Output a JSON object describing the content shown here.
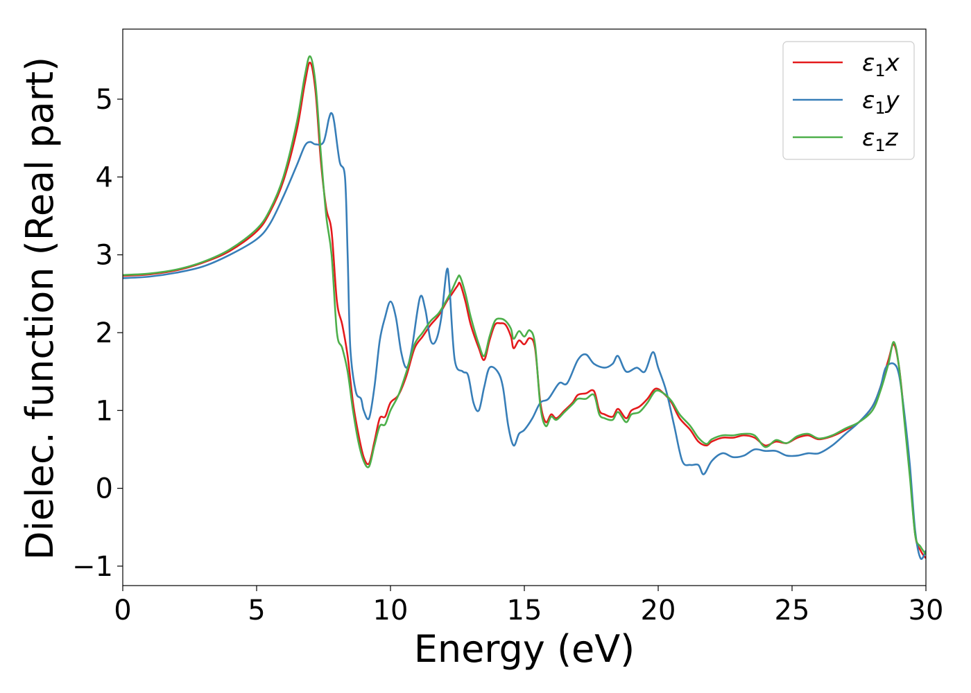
{
  "chart_data": {
    "type": "line",
    "xlabel": "Energy (eV)",
    "ylabel": "Dielec. function (Real part)",
    "xlim": [
      0,
      30
    ],
    "ylim": [
      -1.25,
      5.9
    ],
    "xticks": [
      0,
      5,
      10,
      15,
      20,
      25,
      30
    ],
    "yticks": [
      -1,
      0,
      1,
      2,
      3,
      4,
      5
    ],
    "xtick_labels": [
      "0",
      "5",
      "10",
      "15",
      "20",
      "25",
      "30"
    ],
    "ytick_labels": [
      "−1",
      "0",
      "1",
      "2",
      "3",
      "4",
      "5"
    ],
    "grid": false,
    "legend_position": "top-right",
    "series": [
      {
        "name": "ε₁x",
        "symbol": "ε",
        "subscript": "1",
        "component": "x",
        "color": "#e41a1c",
        "points": [
          [
            0,
            2.73
          ],
          [
            1,
            2.75
          ],
          [
            2,
            2.8
          ],
          [
            3,
            2.9
          ],
          [
            4,
            3.05
          ],
          [
            5,
            3.3
          ],
          [
            5.5,
            3.55
          ],
          [
            6,
            3.95
          ],
          [
            6.5,
            4.6
          ],
          [
            6.8,
            5.2
          ],
          [
            7,
            5.47
          ],
          [
            7.2,
            5.1
          ],
          [
            7.4,
            4.2
          ],
          [
            7.6,
            3.6
          ],
          [
            7.8,
            3.3
          ],
          [
            8,
            2.4
          ],
          [
            8.2,
            2.1
          ],
          [
            8.4,
            1.7
          ],
          [
            8.6,
            1.1
          ],
          [
            8.8,
            0.7
          ],
          [
            9,
            0.4
          ],
          [
            9.2,
            0.32
          ],
          [
            9.4,
            0.6
          ],
          [
            9.6,
            0.9
          ],
          [
            9.8,
            0.92
          ],
          [
            10,
            1.1
          ],
          [
            10.3,
            1.2
          ],
          [
            10.6,
            1.45
          ],
          [
            10.9,
            1.8
          ],
          [
            11.2,
            1.95
          ],
          [
            11.5,
            2.1
          ],
          [
            11.8,
            2.22
          ],
          [
            12.1,
            2.4
          ],
          [
            12.3,
            2.5
          ],
          [
            12.5,
            2.6
          ],
          [
            12.6,
            2.63
          ],
          [
            12.8,
            2.4
          ],
          [
            13,
            2.1
          ],
          [
            13.3,
            1.8
          ],
          [
            13.5,
            1.65
          ],
          [
            13.7,
            1.9
          ],
          [
            13.9,
            2.1
          ],
          [
            14.1,
            2.12
          ],
          [
            14.3,
            2.1
          ],
          [
            14.5,
            1.95
          ],
          [
            14.6,
            1.8
          ],
          [
            14.8,
            1.9
          ],
          [
            15,
            1.85
          ],
          [
            15.2,
            1.93
          ],
          [
            15.4,
            1.8
          ],
          [
            15.6,
            1.1
          ],
          [
            15.8,
            0.85
          ],
          [
            16,
            0.95
          ],
          [
            16.2,
            0.9
          ],
          [
            16.5,
            1.0
          ],
          [
            16.8,
            1.1
          ],
          [
            17,
            1.2
          ],
          [
            17.3,
            1.22
          ],
          [
            17.6,
            1.25
          ],
          [
            17.8,
            1.0
          ],
          [
            18,
            0.95
          ],
          [
            18.3,
            0.92
          ],
          [
            18.5,
            1.02
          ],
          [
            18.8,
            0.9
          ],
          [
            19,
            1.0
          ],
          [
            19.3,
            1.05
          ],
          [
            19.6,
            1.15
          ],
          [
            19.9,
            1.28
          ],
          [
            20.2,
            1.22
          ],
          [
            20.5,
            1.1
          ],
          [
            20.8,
            0.9
          ],
          [
            21.2,
            0.75
          ],
          [
            21.5,
            0.6
          ],
          [
            21.8,
            0.55
          ],
          [
            22,
            0.6
          ],
          [
            22.4,
            0.65
          ],
          [
            22.8,
            0.65
          ],
          [
            23.2,
            0.68
          ],
          [
            23.6,
            0.65
          ],
          [
            24,
            0.55
          ],
          [
            24.4,
            0.6
          ],
          [
            24.8,
            0.58
          ],
          [
            25.2,
            0.65
          ],
          [
            25.6,
            0.68
          ],
          [
            26,
            0.63
          ],
          [
            26.5,
            0.67
          ],
          [
            27,
            0.75
          ],
          [
            27.5,
            0.85
          ],
          [
            28,
            1.05
          ],
          [
            28.3,
            1.3
          ],
          [
            28.6,
            1.65
          ],
          [
            28.8,
            1.85
          ],
          [
            29,
            1.55
          ],
          [
            29.2,
            0.9
          ],
          [
            29.4,
            0.2
          ],
          [
            29.6,
            -0.6
          ],
          [
            29.8,
            -0.8
          ],
          [
            30,
            -0.9
          ]
        ]
      },
      {
        "name": "ε₁y",
        "symbol": "ε",
        "subscript": "1",
        "component": "y",
        "color": "#377eb8",
        "points": [
          [
            0,
            2.7
          ],
          [
            1,
            2.72
          ],
          [
            2,
            2.77
          ],
          [
            3,
            2.85
          ],
          [
            4,
            3.0
          ],
          [
            5,
            3.2
          ],
          [
            5.5,
            3.4
          ],
          [
            6,
            3.75
          ],
          [
            6.5,
            4.15
          ],
          [
            6.8,
            4.4
          ],
          [
            7,
            4.45
          ],
          [
            7.2,
            4.42
          ],
          [
            7.5,
            4.45
          ],
          [
            7.7,
            4.75
          ],
          [
            7.8,
            4.82
          ],
          [
            7.9,
            4.7
          ],
          [
            8.1,
            4.2
          ],
          [
            8.3,
            4.0
          ],
          [
            8.4,
            3.0
          ],
          [
            8.5,
            1.8
          ],
          [
            8.7,
            1.25
          ],
          [
            8.9,
            1.15
          ],
          [
            9,
            1.0
          ],
          [
            9.2,
            0.9
          ],
          [
            9.4,
            1.3
          ],
          [
            9.6,
            1.9
          ],
          [
            9.8,
            2.2
          ],
          [
            10,
            2.4
          ],
          [
            10.2,
            2.2
          ],
          [
            10.4,
            1.75
          ],
          [
            10.6,
            1.55
          ],
          [
            10.8,
            1.8
          ],
          [
            11.1,
            2.45
          ],
          [
            11.3,
            2.3
          ],
          [
            11.5,
            1.9
          ],
          [
            11.7,
            1.9
          ],
          [
            11.9,
            2.2
          ],
          [
            12.1,
            2.8
          ],
          [
            12.2,
            2.6
          ],
          [
            12.4,
            1.65
          ],
          [
            12.7,
            1.5
          ],
          [
            12.9,
            1.45
          ],
          [
            13.1,
            1.1
          ],
          [
            13.3,
            1.0
          ],
          [
            13.5,
            1.3
          ],
          [
            13.7,
            1.55
          ],
          [
            14,
            1.5
          ],
          [
            14.2,
            1.3
          ],
          [
            14.4,
            0.8
          ],
          [
            14.6,
            0.55
          ],
          [
            14.8,
            0.7
          ],
          [
            15,
            0.75
          ],
          [
            15.3,
            0.9
          ],
          [
            15.6,
            1.1
          ],
          [
            15.9,
            1.15
          ],
          [
            16.3,
            1.35
          ],
          [
            16.6,
            1.35
          ],
          [
            17,
            1.65
          ],
          [
            17.3,
            1.72
          ],
          [
            17.6,
            1.6
          ],
          [
            18,
            1.55
          ],
          [
            18.3,
            1.6
          ],
          [
            18.5,
            1.7
          ],
          [
            18.8,
            1.5
          ],
          [
            19.2,
            1.55
          ],
          [
            19.5,
            1.5
          ],
          [
            19.8,
            1.75
          ],
          [
            20,
            1.55
          ],
          [
            20.3,
            1.25
          ],
          [
            20.6,
            0.8
          ],
          [
            20.9,
            0.35
          ],
          [
            21.2,
            0.3
          ],
          [
            21.5,
            0.3
          ],
          [
            21.7,
            0.18
          ],
          [
            22,
            0.35
          ],
          [
            22.4,
            0.45
          ],
          [
            22.8,
            0.4
          ],
          [
            23.2,
            0.42
          ],
          [
            23.6,
            0.5
          ],
          [
            24,
            0.48
          ],
          [
            24.4,
            0.48
          ],
          [
            24.8,
            0.42
          ],
          [
            25.2,
            0.42
          ],
          [
            25.6,
            0.45
          ],
          [
            26,
            0.45
          ],
          [
            26.5,
            0.55
          ],
          [
            27,
            0.7
          ],
          [
            27.5,
            0.85
          ],
          [
            28,
            1.05
          ],
          [
            28.3,
            1.3
          ],
          [
            28.5,
            1.55
          ],
          [
            28.8,
            1.6
          ],
          [
            29,
            1.45
          ],
          [
            29.2,
            0.95
          ],
          [
            29.4,
            0.3
          ],
          [
            29.6,
            -0.55
          ],
          [
            29.8,
            -0.9
          ],
          [
            30,
            -0.8
          ]
        ]
      },
      {
        "name": "ε₁z",
        "symbol": "ε",
        "subscript": "1",
        "component": "z",
        "color": "#4daf4a",
        "points": [
          [
            0,
            2.74
          ],
          [
            1,
            2.76
          ],
          [
            2,
            2.81
          ],
          [
            3,
            2.91
          ],
          [
            4,
            3.07
          ],
          [
            5,
            3.33
          ],
          [
            5.5,
            3.58
          ],
          [
            6,
            4.0
          ],
          [
            6.5,
            4.7
          ],
          [
            6.8,
            5.3
          ],
          [
            7,
            5.55
          ],
          [
            7.2,
            5.2
          ],
          [
            7.4,
            4.3
          ],
          [
            7.6,
            3.5
          ],
          [
            7.8,
            3.0
          ],
          [
            8,
            2.0
          ],
          [
            8.2,
            1.8
          ],
          [
            8.4,
            1.5
          ],
          [
            8.6,
            1.0
          ],
          [
            8.8,
            0.6
          ],
          [
            9,
            0.35
          ],
          [
            9.2,
            0.28
          ],
          [
            9.4,
            0.55
          ],
          [
            9.6,
            0.8
          ],
          [
            9.8,
            0.82
          ],
          [
            10,
            1.0
          ],
          [
            10.3,
            1.2
          ],
          [
            10.6,
            1.5
          ],
          [
            10.9,
            1.85
          ],
          [
            11.2,
            2.0
          ],
          [
            11.5,
            2.15
          ],
          [
            11.8,
            2.25
          ],
          [
            12.1,
            2.42
          ],
          [
            12.3,
            2.55
          ],
          [
            12.5,
            2.7
          ],
          [
            12.6,
            2.72
          ],
          [
            12.8,
            2.5
          ],
          [
            13,
            2.2
          ],
          [
            13.3,
            1.85
          ],
          [
            13.5,
            1.7
          ],
          [
            13.7,
            1.95
          ],
          [
            13.9,
            2.15
          ],
          [
            14.1,
            2.18
          ],
          [
            14.3,
            2.15
          ],
          [
            14.5,
            2.05
          ],
          [
            14.6,
            1.92
          ],
          [
            14.8,
            2.02
          ],
          [
            15,
            1.95
          ],
          [
            15.2,
            2.03
          ],
          [
            15.4,
            1.85
          ],
          [
            15.6,
            1.05
          ],
          [
            15.8,
            0.8
          ],
          [
            16,
            0.92
          ],
          [
            16.2,
            0.88
          ],
          [
            16.5,
            0.98
          ],
          [
            16.8,
            1.08
          ],
          [
            17,
            1.15
          ],
          [
            17.3,
            1.15
          ],
          [
            17.6,
            1.2
          ],
          [
            17.8,
            0.95
          ],
          [
            18,
            0.9
          ],
          [
            18.3,
            0.88
          ],
          [
            18.5,
            0.98
          ],
          [
            18.8,
            0.85
          ],
          [
            19,
            0.95
          ],
          [
            19.3,
            0.98
          ],
          [
            19.6,
            1.1
          ],
          [
            19.9,
            1.25
          ],
          [
            20.2,
            1.22
          ],
          [
            20.5,
            1.12
          ],
          [
            20.8,
            0.95
          ],
          [
            21.2,
            0.8
          ],
          [
            21.5,
            0.65
          ],
          [
            21.8,
            0.57
          ],
          [
            22,
            0.63
          ],
          [
            22.4,
            0.68
          ],
          [
            22.8,
            0.68
          ],
          [
            23.2,
            0.7
          ],
          [
            23.6,
            0.68
          ],
          [
            24,
            0.53
          ],
          [
            24.4,
            0.62
          ],
          [
            24.8,
            0.58
          ],
          [
            25.2,
            0.67
          ],
          [
            25.6,
            0.7
          ],
          [
            26,
            0.64
          ],
          [
            26.5,
            0.68
          ],
          [
            27,
            0.77
          ],
          [
            27.5,
            0.85
          ],
          [
            28,
            1.0
          ],
          [
            28.3,
            1.25
          ],
          [
            28.6,
            1.6
          ],
          [
            28.8,
            1.88
          ],
          [
            29,
            1.55
          ],
          [
            29.2,
            0.85
          ],
          [
            29.4,
            0.15
          ],
          [
            29.6,
            -0.6
          ],
          [
            29.8,
            -0.75
          ],
          [
            30,
            -0.85
          ]
        ]
      }
    ]
  }
}
